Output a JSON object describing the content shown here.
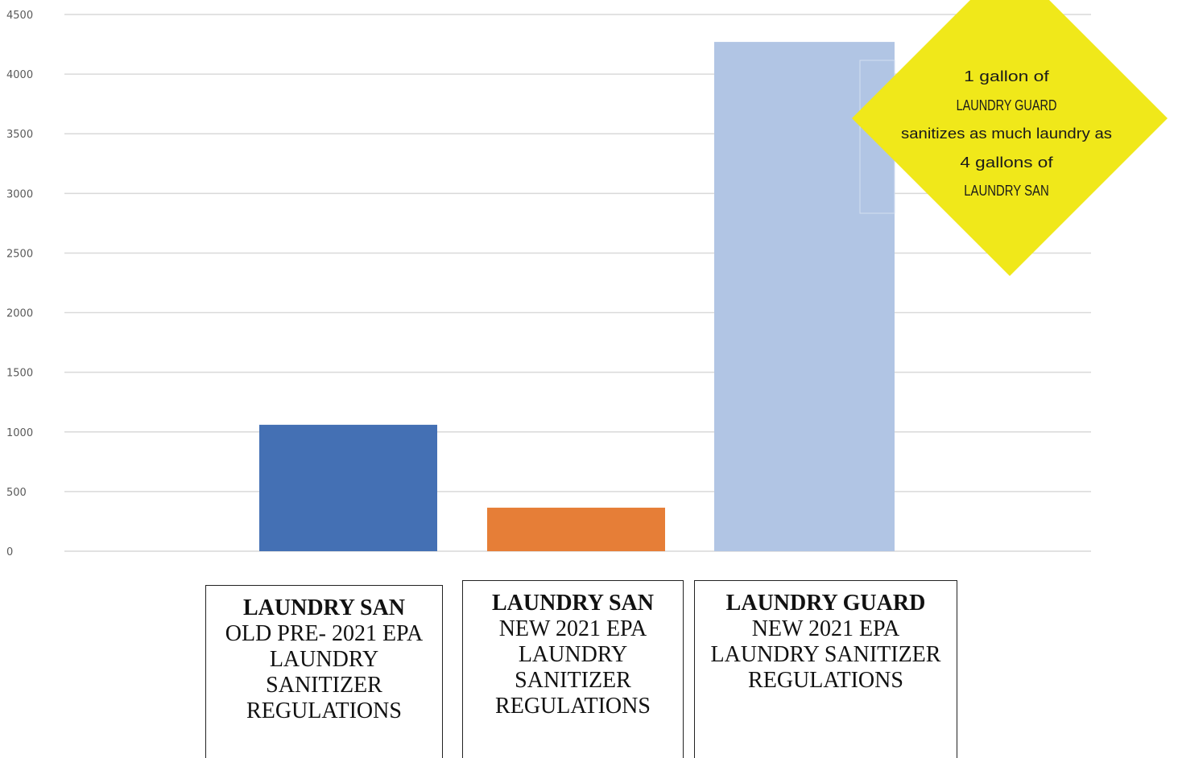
{
  "chart_data": {
    "type": "bar",
    "title": "",
    "xlabel": "",
    "ylabel": "",
    "ylim": [
      0,
      4500
    ],
    "yticks": [
      0,
      500,
      1000,
      1500,
      2000,
      2500,
      3000,
      3500,
      4000,
      4500
    ],
    "grid": true,
    "categories": [
      {
        "title": "LAUNDRY SAN",
        "description": "OLD PRE- 2021 EPA LAUNDRY SANITIZER REGULATIONS"
      },
      {
        "title": "LAUNDRY SAN",
        "description": "NEW 2021 EPA LAUNDRY SANITIZER REGULATIONS"
      },
      {
        "title": "LAUNDRY GUARD",
        "description": "NEW 2021 EPA LAUNDRY SANITIZER REGULATIONS"
      }
    ],
    "values": [
      1060,
      365,
      4270
    ],
    "colors": [
      "#4470b4",
      "#e67e37",
      "#b1c5e4"
    ],
    "annotation": {
      "shape": "diamond",
      "color": "#f0e81a",
      "lines": [
        "1 gallon of",
        "LAUNDRY GUARD",
        "sanitizes as much laundry as",
        "4 gallons of",
        "LAUNDRY SAN"
      ]
    }
  }
}
